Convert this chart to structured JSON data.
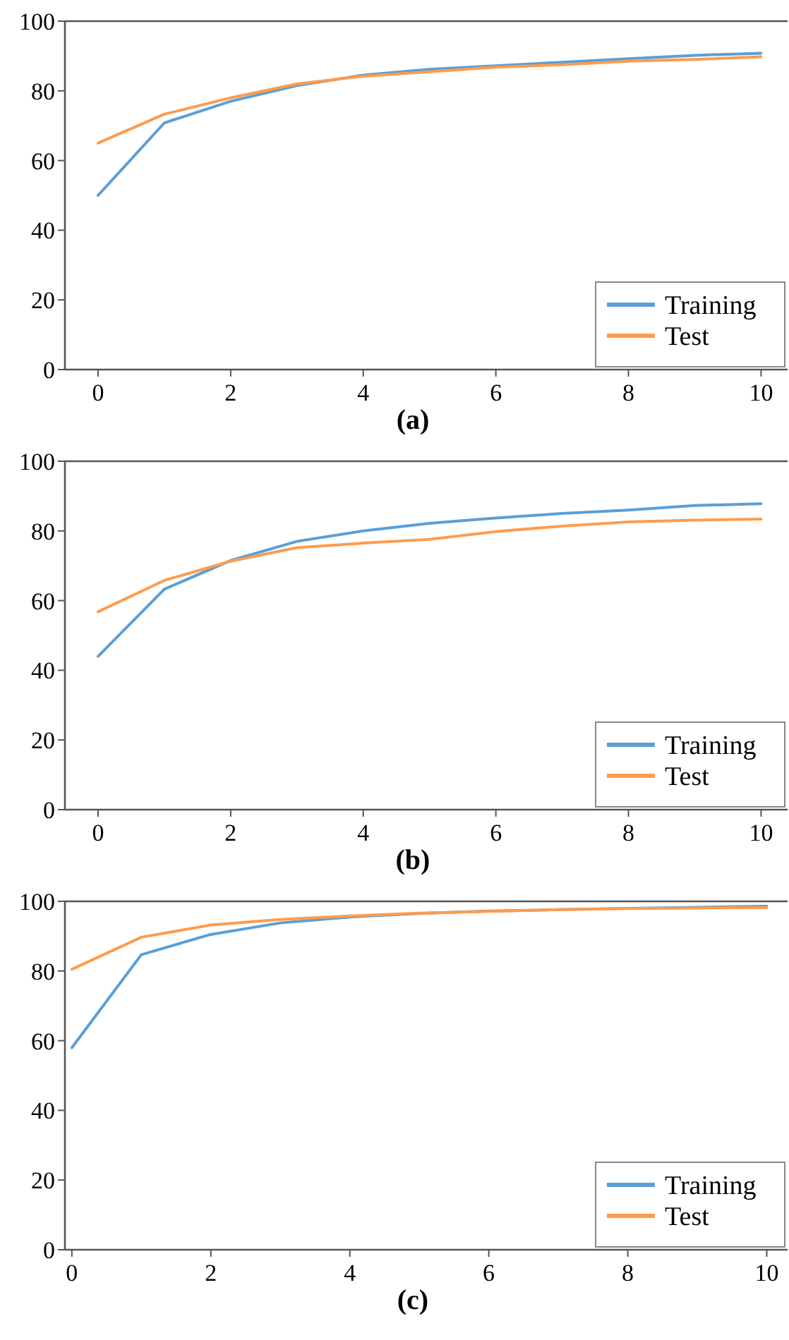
{
  "chart_data": [
    {
      "type": "line",
      "title": "(a)",
      "x": [
        0,
        1,
        2,
        3,
        4,
        5,
        6,
        7,
        8,
        9,
        10
      ],
      "xlim": [
        -0.5,
        10.4
      ],
      "xticks": [
        0,
        2,
        4,
        6,
        8,
        10
      ],
      "ylim": [
        0,
        100
      ],
      "yticks": [
        0,
        20,
        40,
        60,
        80,
        100
      ],
      "grid": false,
      "legend": "bottom right",
      "series": [
        {
          "name": "Training",
          "color": "#5b9fd6",
          "values": [
            50,
            70.8,
            77,
            81.5,
            84.5,
            86.2,
            87.2,
            88.2,
            89.2,
            90.2,
            90.8
          ]
        },
        {
          "name": "Test",
          "color": "#fd9c4e",
          "values": [
            65,
            73.3,
            78,
            82,
            84.2,
            85.5,
            86.8,
            87.5,
            88.5,
            89,
            89.8
          ]
        }
      ]
    },
    {
      "type": "line",
      "title": "(b)",
      "x": [
        0,
        1,
        2,
        3,
        4,
        5,
        6,
        7,
        8,
        9,
        10
      ],
      "xlim": [
        -0.5,
        10.4
      ],
      "xticks": [
        0,
        2,
        4,
        6,
        8,
        10
      ],
      "ylim": [
        0,
        100
      ],
      "yticks": [
        0,
        20,
        40,
        60,
        80,
        100
      ],
      "grid": false,
      "legend": "bottom right",
      "series": [
        {
          "name": "Training",
          "color": "#5b9fd6",
          "values": [
            44,
            63.3,
            71.5,
            77,
            80,
            82.2,
            83.7,
            85,
            86,
            87.3,
            87.8
          ]
        },
        {
          "name": "Test",
          "color": "#fd9c4e",
          "values": [
            56.8,
            65.8,
            71.3,
            75.2,
            76.5,
            77.6,
            79.8,
            81.4,
            82.6,
            83.1,
            83.4
          ]
        }
      ]
    },
    {
      "type": "line",
      "title": "(c)",
      "x": [
        0,
        1,
        2,
        3,
        4,
        5,
        6,
        7,
        8,
        9,
        10
      ],
      "xlim": [
        -0.1,
        10.3
      ],
      "xticks": [
        0,
        2,
        4,
        6,
        8,
        10
      ],
      "ylim": [
        0,
        100
      ],
      "yticks": [
        0,
        20,
        40,
        60,
        80,
        100
      ],
      "grid": false,
      "legend": "bottom right",
      "series": [
        {
          "name": "Training",
          "color": "#5b9fd6",
          "values": [
            58,
            84.7,
            90.5,
            93.8,
            95.5,
            96.5,
            97.2,
            97.6,
            98,
            98.3,
            98.6
          ]
        },
        {
          "name": "Test",
          "color": "#fd9c4e",
          "values": [
            80.5,
            89.7,
            93.2,
            94.8,
            95.8,
            96.6,
            97.1,
            97.6,
            97.9,
            98.1,
            98.2
          ]
        }
      ]
    }
  ]
}
